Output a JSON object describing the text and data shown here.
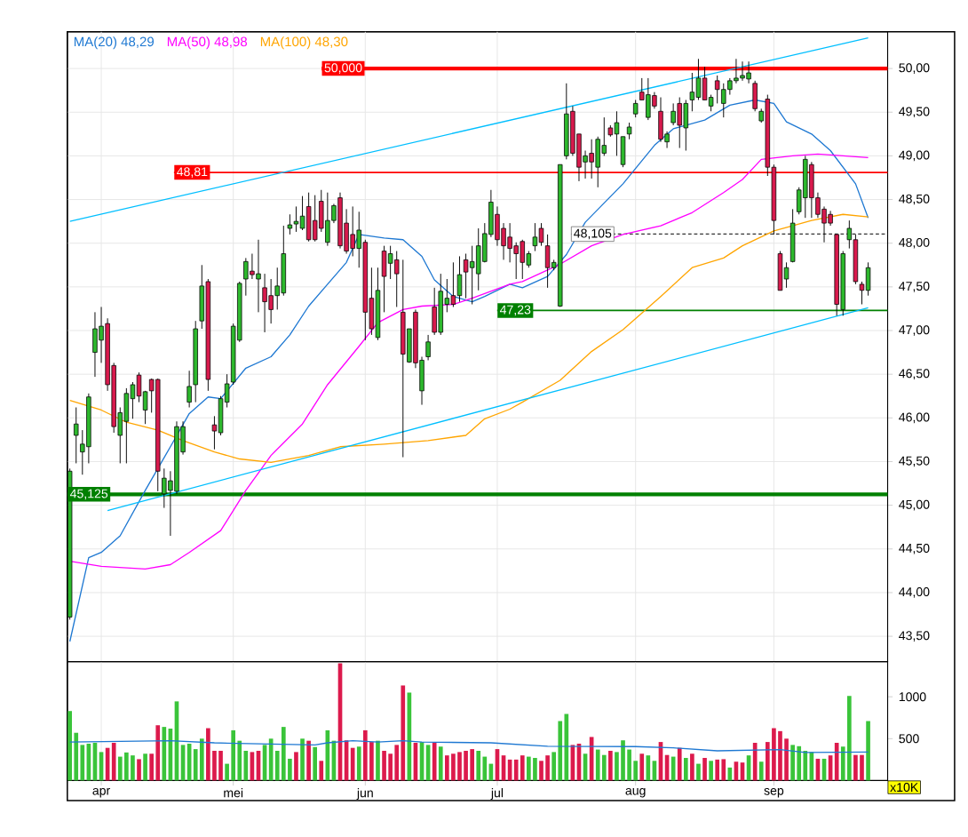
{
  "chart_data": [
    {
      "type": "candlestick",
      "ohlc": [
        [
          43.72,
          45.42,
          43.69,
          45.39
        ],
        [
          45.8,
          46.12,
          45.48,
          45.93
        ],
        [
          45.61,
          45.86,
          45.35,
          45.7
        ],
        [
          45.67,
          46.28,
          45.48,
          46.24
        ],
        [
          46.75,
          47.21,
          46.47,
          47.02
        ],
        [
          46.89,
          47.27,
          46.63,
          47.05
        ],
        [
          47.08,
          47.14,
          46.31,
          46.38
        ],
        [
          46.6,
          46.63,
          45.83,
          45.9
        ],
        [
          45.8,
          46.12,
          45.48,
          46.06
        ],
        [
          45.96,
          46.34,
          45.48,
          46.28
        ],
        [
          46.22,
          46.41,
          45.99,
          46.38
        ],
        [
          46.49,
          46.52,
          46.18,
          46.25
        ],
        [
          46.09,
          46.31,
          45.93,
          46.3
        ],
        [
          46.44,
          46.45,
          46.06,
          46.31
        ],
        [
          46.44,
          46.45,
          45.16,
          45.39
        ],
        [
          45.13,
          45.42,
          44.97,
          45.31
        ],
        [
          45.17,
          45.39,
          44.65,
          45.28
        ],
        [
          45.16,
          45.96,
          45.13,
          45.9
        ],
        [
          45.61,
          45.96,
          45.58,
          45.9
        ],
        [
          46.18,
          46.54,
          46.12,
          46.36
        ],
        [
          46.38,
          47.11,
          46.18,
          47.02
        ],
        [
          47.11,
          47.75,
          47.02,
          47.51
        ],
        [
          47.56,
          47.59,
          46.31,
          46.44
        ],
        [
          45.92,
          46.02,
          45.64,
          45.85
        ],
        [
          45.83,
          46.25,
          45.8,
          46.22
        ],
        [
          46.18,
          46.5,
          46.12,
          46.39
        ],
        [
          46.41,
          47.08,
          46.38,
          47.05
        ],
        [
          46.89,
          47.56,
          46.87,
          47.54
        ],
        [
          47.59,
          47.83,
          47.4,
          47.79
        ],
        [
          47.68,
          47.88,
          47.59,
          47.64
        ],
        [
          47.59,
          48.04,
          47.21,
          47.65
        ],
        [
          47.49,
          47.65,
          46.98,
          47.33
        ],
        [
          47.4,
          47.59,
          47.08,
          47.24
        ],
        [
          47.4,
          47.72,
          47.24,
          47.51
        ],
        [
          47.43,
          48.2,
          47.4,
          47.88
        ],
        [
          48.17,
          48.33,
          48.1,
          48.21
        ],
        [
          48.22,
          48.42,
          48.13,
          48.25
        ],
        [
          48.17,
          48.54,
          48.15,
          48.31
        ],
        [
          48.42,
          48.58,
          48.02,
          48.04
        ],
        [
          48.26,
          48.55,
          48.02,
          48.04
        ],
        [
          48.48,
          48.61,
          48.13,
          48.17
        ],
        [
          48.01,
          48.58,
          47.97,
          48.26
        ],
        [
          48.26,
          48.45,
          48.23,
          48.43
        ],
        [
          48.52,
          48.58,
          47.94,
          47.97
        ],
        [
          48.23,
          48.39,
          47.88,
          47.91
        ],
        [
          48.1,
          48.42,
          47.85,
          47.94
        ],
        [
          47.94,
          48.36,
          47.72,
          48.15
        ],
        [
          48.01,
          48.04,
          46.89,
          47.21
        ],
        [
          47.37,
          47.72,
          46.95,
          47.02
        ],
        [
          46.92,
          47.72,
          46.89,
          47.46
        ],
        [
          47.91,
          47.97,
          47.21,
          47.62
        ],
        [
          47.77,
          47.97,
          47.59,
          47.88
        ],
        [
          47.81,
          47.91,
          47.27,
          47.65
        ],
        [
          47.21,
          47.81,
          45.55,
          46.73
        ],
        [
          46.64,
          47.02,
          46.63,
          47.02
        ],
        [
          47.21,
          47.24,
          46.57,
          46.63
        ],
        [
          46.31,
          46.7,
          46.15,
          46.66
        ],
        [
          46.7,
          46.95,
          46.66,
          46.87
        ],
        [
          47.27,
          47.49,
          46.95,
          46.98
        ],
        [
          46.98,
          47.65,
          46.95,
          47.45
        ],
        [
          47.3,
          47.59,
          47.21,
          47.37
        ],
        [
          47.4,
          47.78,
          47.27,
          47.3
        ],
        [
          47.4,
          47.85,
          47.33,
          47.64
        ],
        [
          47.81,
          47.88,
          47.37,
          47.67
        ],
        [
          47.72,
          47.97,
          47.3,
          47.79
        ],
        [
          47.65,
          48.17,
          47.46,
          47.97
        ],
        [
          47.79,
          48.23,
          47.78,
          48.11
        ],
        [
          48.1,
          48.61,
          48.07,
          48.47
        ],
        [
          48.33,
          48.42,
          47.97,
          48.04
        ],
        [
          48.17,
          48.23,
          47.81,
          47.97
        ],
        [
          48.07,
          48.23,
          47.78,
          47.94
        ],
        [
          47.97,
          48.01,
          47.59,
          47.88
        ],
        [
          48.02,
          48.04,
          47.59,
          47.78
        ],
        [
          47.75,
          47.91,
          47.72,
          47.88
        ],
        [
          47.97,
          48.23,
          47.91,
          48.07
        ],
        [
          48.17,
          48.23,
          47.97,
          48.01
        ],
        [
          47.97,
          48.1,
          47.49,
          47.72
        ],
        [
          47.72,
          47.81,
          47.69,
          47.78
        ],
        [
          47.28,
          48.9,
          47.27,
          48.9
        ],
        [
          49.0,
          49.83,
          48.96,
          49.48
        ],
        [
          49.51,
          49.57,
          49.0,
          49.03
        ],
        [
          49.25,
          49.25,
          48.71,
          48.87
        ],
        [
          48.93,
          49.06,
          48.74,
          49.0
        ],
        [
          49.03,
          49.19,
          48.74,
          48.93
        ],
        [
          48.87,
          49.22,
          48.64,
          49.19
        ],
        [
          49.03,
          49.44,
          49.0,
          49.12
        ],
        [
          49.32,
          49.35,
          49.22,
          49.24
        ],
        [
          49.25,
          49.51,
          49.0,
          49.38
        ],
        [
          48.9,
          49.22,
          48.87,
          49.22
        ],
        [
          49.25,
          49.38,
          49.19,
          49.33
        ],
        [
          49.48,
          49.64,
          49.44,
          49.6
        ],
        [
          49.73,
          49.89,
          49.64,
          49.64
        ],
        [
          49.44,
          49.89,
          49.41,
          49.7
        ],
        [
          49.69,
          49.73,
          49.54,
          49.57
        ],
        [
          49.51,
          49.67,
          49.16,
          49.19
        ],
        [
          49.16,
          49.28,
          49.09,
          49.25
        ],
        [
          49.38,
          49.6,
          49.35,
          49.51
        ],
        [
          49.6,
          49.67,
          49.09,
          49.35
        ],
        [
          49.32,
          49.64,
          49.06,
          49.6
        ],
        [
          49.64,
          49.95,
          49.51,
          49.73
        ],
        [
          49.67,
          50.11,
          49.64,
          49.89
        ],
        [
          49.89,
          50.02,
          49.64,
          49.64
        ],
        [
          49.57,
          49.7,
          49.51,
          49.67
        ],
        [
          49.86,
          49.92,
          49.6,
          49.76
        ],
        [
          49.6,
          49.83,
          49.44,
          49.76
        ],
        [
          49.76,
          49.89,
          49.7,
          49.86
        ],
        [
          49.86,
          50.11,
          49.83,
          49.89
        ],
        [
          49.89,
          50.08,
          49.86,
          49.92
        ],
        [
          49.88,
          50.08,
          49.83,
          49.95
        ],
        [
          49.83,
          49.86,
          49.51,
          49.54
        ],
        [
          49.4,
          49.54,
          49.38,
          49.51
        ],
        [
          49.65,
          49.7,
          48.77,
          48.87
        ],
        [
          48.87,
          48.9,
          48.1,
          48.26
        ],
        [
          47.88,
          47.91,
          47.46,
          47.46
        ],
        [
          47.59,
          47.78,
          47.49,
          47.72
        ],
        [
          47.79,
          48.39,
          47.78,
          48.23
        ],
        [
          48.36,
          48.64,
          48.33,
          48.61
        ],
        [
          48.52,
          49.0,
          48.29,
          48.96
        ],
        [
          48.9,
          48.93,
          48.29,
          48.52
        ],
        [
          48.52,
          48.58,
          48.29,
          48.33
        ],
        [
          48.39,
          48.42,
          48.01,
          48.23
        ],
        [
          48.33,
          48.37,
          48.2,
          48.23
        ],
        [
          48.1,
          48.1,
          47.17,
          47.3
        ],
        [
          47.24,
          47.91,
          47.17,
          47.88
        ],
        [
          48.04,
          48.26,
          47.94,
          48.17
        ],
        [
          48.04,
          48.1,
          47.53,
          47.56
        ],
        [
          47.53,
          47.56,
          47.3,
          47.46
        ],
        [
          47.46,
          47.78,
          47.4,
          47.72
        ]
      ],
      "series": [
        {
          "type": "line",
          "name": "MA(20)  48,29",
          "color": "#1e78d2",
          "values": [
            43.44,
            null,
            null,
            44.4,
            null,
            44.46,
            null,
            null,
            44.65,
            null,
            null,
            null,
            45.17,
            null,
            null,
            null,
            45.67,
            null,
            null,
            46.05,
            null,
            null,
            46.24,
            null,
            46.22,
            null,
            null,
            null,
            46.57,
            null,
            null,
            null,
            46.7,
            null,
            null,
            46.95,
            null,
            null,
            47.28,
            null,
            null,
            47.53,
            null,
            null,
            47.78,
            null,
            48.1,
            null,
            null,
            null,
            48.06,
            null,
            null,
            48.04,
            null,
            null,
            47.85,
            null,
            47.58,
            null,
            null,
            47.39,
            null,
            null,
            47.33,
            null,
            47.39,
            null,
            null,
            null,
            47.53,
            null,
            47.49,
            null,
            null,
            null,
            47.62,
            null,
            null,
            47.87,
            null,
            null,
            48.24,
            null,
            null,
            null,
            null,
            null,
            48.68,
            null,
            null,
            null,
            null,
            49.12,
            null,
            null,
            49.31,
            null,
            null,
            null,
            null,
            49.41,
            null,
            null,
            null,
            49.58,
            null,
            null,
            null,
            49.64,
            null,
            null,
            49.6,
            null,
            49.39,
            null,
            null,
            null,
            49.25,
            null,
            null,
            49.06,
            null,
            null,
            null,
            48.68,
            null,
            48.29
          ]
        },
        {
          "type": "line",
          "name": "MA(50)  48,98",
          "color": "#ff00ff",
          "values": [
            44.36,
            null,
            null,
            null,
            null,
            44.3,
            null,
            null,
            null,
            null,
            null,
            null,
            44.27,
            null,
            null,
            null,
            44.32,
            null,
            null,
            44.46,
            null,
            null,
            null,
            null,
            44.71,
            null,
            null,
            null,
            45.17,
            null,
            null,
            null,
            45.57,
            null,
            null,
            null,
            null,
            45.93,
            null,
            null,
            null,
            46.38,
            null,
            null,
            null,
            null,
            46.82,
            null,
            null,
            47.09,
            null,
            null,
            null,
            47.24,
            null,
            null,
            47.28,
            null,
            null,
            null,
            null,
            47.3,
            null,
            null,
            47.37,
            null,
            null,
            null,
            null,
            null,
            47.53,
            null,
            47.56,
            null,
            null,
            null,
            null,
            null,
            47.76,
            null,
            null,
            null,
            null,
            47.97,
            null,
            null,
            null,
            null,
            48.1,
            null,
            null,
            null,
            null,
            null,
            48.2,
            null,
            null,
            null,
            null,
            48.35,
            null,
            null,
            null,
            null,
            48.58,
            null,
            null,
            48.73,
            null,
            null,
            48.96,
            null,
            null,
            null,
            null,
            49.0,
            null,
            null,
            null,
            49.02,
            null,
            null,
            null,
            null,
            null,
            null,
            null,
            48.98
          ]
        },
        {
          "type": "line",
          "name": "MA(100)  48,30",
          "color": "#ffa500",
          "values": [
            46.2,
            null,
            null,
            null,
            null,
            46.09,
            null,
            null,
            null,
            45.95,
            null,
            null,
            null,
            null,
            45.86,
            null,
            null,
            null,
            45.74,
            null,
            null,
            null,
            null,
            45.61,
            null,
            null,
            null,
            45.53,
            null,
            null,
            null,
            null,
            45.49,
            null,
            null,
            null,
            null,
            null,
            45.57,
            null,
            null,
            null,
            null,
            45.67,
            null,
            null,
            null,
            null,
            null,
            null,
            45.7,
            null,
            null,
            null,
            null,
            null,
            null,
            45.74,
            null,
            null,
            null,
            null,
            null,
            45.8,
            null,
            null,
            45.99,
            null,
            null,
            null,
            46.1,
            null,
            46.18,
            null,
            null,
            null,
            null,
            null,
            46.43,
            null,
            null,
            null,
            null,
            46.76,
            null,
            null,
            null,
            null,
            47.01,
            null,
            null,
            null,
            null,
            null,
            47.39,
            null,
            null,
            null,
            null,
            47.72,
            null,
            null,
            null,
            null,
            47.83,
            null,
            null,
            47.97,
            null,
            null,
            null,
            null,
            48.14,
            null,
            null,
            null,
            null,
            null,
            48.26,
            null,
            null,
            null,
            null,
            48.33,
            null,
            null,
            null,
            48.3
          ]
        },
        {
          "type": "line",
          "color": "#00bfff",
          "values": [
            48.25,
            null,
            null,
            null,
            null,
            null,
            null,
            null,
            null,
            null,
            null,
            null,
            null,
            null,
            null,
            null,
            null,
            null,
            null,
            null,
            null,
            null,
            null,
            null,
            null,
            null,
            null,
            null,
            null,
            null,
            null,
            null,
            null,
            null,
            null,
            null,
            null,
            null,
            null,
            null,
            null,
            null,
            null,
            null,
            null,
            null,
            null,
            null,
            null,
            null,
            null,
            null,
            null,
            null,
            null,
            null,
            null,
            null,
            null,
            null,
            null,
            null,
            null,
            null,
            null,
            null,
            null,
            null,
            null,
            null,
            null,
            null,
            null,
            null,
            null,
            null,
            null,
            null,
            null,
            null,
            null,
            null,
            null,
            null,
            null,
            null,
            null,
            null,
            null,
            null,
            null,
            null,
            null,
            null,
            null,
            null,
            null,
            null,
            null,
            null,
            null,
            null,
            null,
            null,
            null,
            null,
            null,
            null,
            null,
            null,
            null,
            null,
            null,
            null,
            null,
            null,
            null,
            null,
            null,
            null,
            null,
            null,
            null,
            null,
            null,
            null,
            null,
            50.35
          ]
        },
        {
          "type": "line",
          "color": "#00bfff",
          "values": [
            null,
            null,
            null,
            null,
            null,
            null,
            44.94,
            null,
            null,
            null,
            null,
            null,
            null,
            null,
            null,
            null,
            null,
            null,
            null,
            null,
            null,
            null,
            null,
            null,
            null,
            null,
            null,
            null,
            null,
            null,
            null,
            null,
            null,
            null,
            null,
            null,
            null,
            null,
            null,
            null,
            null,
            null,
            null,
            null,
            null,
            null,
            null,
            null,
            null,
            null,
            null,
            null,
            null,
            null,
            null,
            null,
            null,
            null,
            null,
            null,
            null,
            null,
            null,
            null,
            null,
            null,
            null,
            null,
            null,
            null,
            null,
            null,
            null,
            null,
            null,
            null,
            null,
            null,
            null,
            null,
            null,
            null,
            null,
            null,
            null,
            null,
            null,
            null,
            null,
            null,
            null,
            null,
            null,
            null,
            null,
            null,
            null,
            null,
            null,
            null,
            null,
            null,
            null,
            null,
            null,
            null,
            null,
            null,
            null,
            null,
            null,
            null,
            null,
            null,
            null,
            null,
            null,
            null,
            null,
            null,
            null,
            null,
            null,
            null,
            null,
            null,
            null,
            47.26
          ]
        }
      ],
      "ref_lines": [
        {
          "axis": "y",
          "value": 50.0,
          "label": "50,000",
          "color": "#ff0000"
        },
        {
          "axis": "y",
          "value": 48.81,
          "label": "48,81",
          "color": "#ff0000"
        },
        {
          "axis": "y",
          "value": 48.105,
          "label": "48,105",
          "color": "#333333",
          "line_style": "dashed"
        },
        {
          "axis": "y",
          "value": 47.23,
          "label": "47,23",
          "color": "#008000"
        },
        {
          "axis": "y",
          "value": 45.125,
          "label": "45,125",
          "color": "#008000"
        }
      ],
      "ylim": [
        43.21,
        50.42
      ],
      "categories": [
        null,
        null,
        null,
        null,
        null,
        null,
        null,
        null,
        null,
        null,
        null,
        null,
        null,
        null,
        null,
        null,
        null,
        null,
        null,
        null,
        null,
        null,
        null,
        null,
        null,
        null,
        null,
        null,
        null,
        null,
        null,
        null,
        null,
        null,
        null,
        null,
        null,
        null,
        null,
        null,
        null,
        null,
        null,
        null,
        null,
        null,
        null,
        null,
        null,
        null,
        null,
        null,
        null,
        null,
        null,
        null,
        null,
        null,
        null,
        null,
        null,
        null,
        null,
        null,
        null,
        null,
        null,
        null,
        null,
        null,
        null,
        null,
        null,
        null,
        null,
        null,
        null,
        null,
        null,
        null,
        null,
        null,
        null,
        null,
        null,
        null,
        null,
        null,
        null,
        null,
        null,
        null,
        null,
        null,
        null,
        null,
        null,
        null,
        null,
        null,
        null,
        null,
        null,
        null,
        null,
        null,
        null,
        null,
        null,
        null,
        null,
        null,
        null,
        null,
        null,
        null,
        null,
        null,
        null,
        null,
        null,
        null,
        null,
        null,
        null,
        null,
        null,
        null
      ],
      "yticks": [
        {
          "value": 43.5,
          "label": "43,50"
        },
        {
          "value": 44.0,
          "label": "44,00"
        },
        {
          "value": 44.5,
          "label": "44,50"
        },
        {
          "value": 45.0,
          "label": "45,00"
        },
        {
          "value": 45.5,
          "label": "45,50"
        },
        {
          "value": 46.0,
          "label": "46,00"
        },
        {
          "value": 46.5,
          "label": "46,50"
        },
        {
          "value": 47.0,
          "label": "47,00"
        },
        {
          "value": 47.5,
          "label": "47,50"
        },
        {
          "value": 48.0,
          "label": "48,00"
        },
        {
          "value": 48.5,
          "label": "48,50"
        },
        {
          "value": 49.0,
          "label": "49,00"
        },
        {
          "value": 49.5,
          "label": "49,50"
        },
        {
          "value": 50.0,
          "label": "50,00"
        }
      ],
      "grid": "y",
      "legend": "top left"
    },
    {
      "type": "bar",
      "ylabel": "x10K",
      "series": [
        {
          "values": [
            830,
            570,
            425,
            440,
            450,
            340,
            390,
            450,
            285,
            335,
            300,
            255,
            320,
            320,
            660,
            640,
            620,
            945,
            425,
            440,
            375,
            500,
            625,
            355,
            355,
            200,
            600,
            475,
            355,
            340,
            355,
            425,
            500,
            355,
            640,
            260,
            340,
            500,
            475,
            400,
            235,
            600,
            475,
            1400,
            480,
            390,
            405,
            600,
            460,
            475,
            355,
            320,
            425,
            1135,
            1050,
            450,
            460,
            425,
            450,
            405,
            300,
            320,
            340,
            355,
            375,
            355,
            285,
            200,
            375,
            300,
            250,
            250,
            300,
            285,
            270,
            235,
            300,
            340,
            710,
            795,
            425,
            440,
            320,
            520,
            370,
            305,
            355,
            340,
            480,
            370,
            235,
            320,
            300,
            235,
            460,
            305,
            285,
            390,
            270,
            320,
            200,
            270,
            235,
            250,
            255,
            155,
            225,
            215,
            300,
            450,
            225,
            460,
            625,
            590,
            500,
            425,
            410,
            355,
            340,
            260,
            260,
            300,
            450,
            405,
            1010,
            305,
            305,
            710
          ],
          "colors": [
            "#3ac43a",
            "#3ac43a",
            "#3ac43a",
            "#3ac43a",
            "#3ac43a",
            "#3ac43a",
            "#dc1a4c",
            "#dc1a4c",
            "#3ac43a",
            "#3ac43a",
            "#3ac43a",
            "#dc1a4c",
            "#3ac43a",
            "#dc1a4c",
            "#dc1a4c",
            "#3ac43a",
            "#3ac43a",
            "#3ac43a",
            "#3ac43a",
            "#3ac43a",
            "#3ac43a",
            "#3ac43a",
            "#dc1a4c",
            "#dc1a4c",
            "#dc1a4c",
            "#3ac43a",
            "#3ac43a",
            "#3ac43a",
            "#3ac43a",
            "#dc1a4c",
            "#dc1a4c",
            "#3ac43a",
            "#3ac43a",
            "#3ac43a",
            "#3ac43a",
            "#3ac43a",
            "#dc1a4c",
            "#3ac43a",
            "#dc1a4c",
            "#3ac43a",
            "#dc1a4c",
            "#3ac43a",
            "#3ac43a",
            "#dc1a4c",
            "#dc1a4c",
            "#dc1a4c",
            "#3ac43a",
            "#dc1a4c",
            "#dc1a4c",
            "#3ac43a",
            "#dc1a4c",
            "#dc1a4c",
            "#dc1a4c",
            "#dc1a4c",
            "#3ac43a",
            "#dc1a4c",
            "#3ac43a",
            "#3ac43a",
            "#dc1a4c",
            "#3ac43a",
            "#dc1a4c",
            "#dc1a4c",
            "#dc1a4c",
            "#dc1a4c",
            "#dc1a4c",
            "#3ac43a",
            "#3ac43a",
            "#3ac43a",
            "#dc1a4c",
            "#dc1a4c",
            "#dc1a4c",
            "#dc1a4c",
            "#dc1a4c",
            "#3ac43a",
            "#3ac43a",
            "#dc1a4c",
            "#dc1a4c",
            "#3ac43a",
            "#3ac43a",
            "#3ac43a",
            "#dc1a4c",
            "#dc1a4c",
            "#3ac43a",
            "#dc1a4c",
            "#3ac43a",
            "#3ac43a",
            "#dc1a4c",
            "#3ac43a",
            "#3ac43a",
            "#3ac43a",
            "#3ac43a",
            "#dc1a4c",
            "#3ac43a",
            "#3ac43a",
            "#dc1a4c",
            "#dc1a4c",
            "#3ac43a",
            "#dc1a4c",
            "#3ac43a",
            "#dc1a4c",
            "#3ac43a",
            "#dc1a4c",
            "#3ac43a",
            "#dc1a4c",
            "#dc1a4c",
            "#3ac43a",
            "#dc1a4c",
            "#dc1a4c",
            "#3ac43a",
            "#dc1a4c",
            "#3ac43a",
            "#dc1a4c",
            "#dc1a4c",
            "#dc1a4c",
            "#dc1a4c",
            "#3ac43a",
            "#3ac43a",
            "#3ac43a",
            "#3ac43a",
            "#dc1a4c",
            "#3ac43a",
            "#dc1a4c",
            "#dc1a4c",
            "#3ac43a",
            "#3ac43a",
            "#dc1a4c",
            "#dc1a4c",
            "#3ac43a"
          ]
        },
        {
          "type": "line",
          "color": "#1e78d2",
          "values": [
            460,
            null,
            null,
            null,
            null,
            null,
            null,
            null,
            null,
            null,
            null,
            null,
            null,
            null,
            null,
            null,
            475,
            null,
            null,
            null,
            null,
            null,
            null,
            450,
            null,
            null,
            null,
            null,
            null,
            null,
            null,
            null,
            null,
            null,
            null,
            null,
            null,
            null,
            null,
            425,
            null,
            450,
            null,
            null,
            null,
            475,
            null,
            null,
            null,
            460,
            null,
            null,
            null,
            475,
            null,
            null,
            460,
            null,
            null,
            null,
            null,
            null,
            null,
            null,
            null,
            null,
            null,
            450,
            null,
            null,
            null,
            null,
            null,
            null,
            null,
            null,
            410,
            null,
            null,
            null,
            null,
            null,
            null,
            null,
            null,
            null,
            null,
            null,
            null,
            null,
            405,
            null,
            null,
            null,
            null,
            null,
            390,
            null,
            null,
            null,
            null,
            null,
            null,
            355,
            null,
            null,
            null,
            null,
            null,
            null,
            null,
            null,
            null,
            370,
            null,
            null,
            null,
            335,
            null,
            null,
            null,
            null,
            null,
            null,
            null,
            null,
            null,
            340
          ]
        }
      ],
      "ylim": [
        0,
        1420
      ],
      "categories": [
        null,
        null,
        null,
        null,
        null,
        "apr",
        null,
        null,
        null,
        null,
        null,
        null,
        null,
        null,
        null,
        null,
        null,
        null,
        null,
        null,
        null,
        null,
        null,
        null,
        null,
        null,
        "mei",
        null,
        null,
        null,
        null,
        null,
        null,
        null,
        null,
        null,
        null,
        null,
        null,
        null,
        null,
        null,
        null,
        null,
        null,
        null,
        null,
        "jun",
        null,
        null,
        null,
        null,
        null,
        null,
        null,
        null,
        null,
        null,
        null,
        null,
        null,
        null,
        null,
        null,
        null,
        null,
        null,
        null,
        "jul",
        null,
        null,
        null,
        null,
        null,
        null,
        null,
        null,
        null,
        null,
        null,
        null,
        null,
        null,
        null,
        null,
        null,
        null,
        null,
        null,
        null,
        "aug",
        null,
        null,
        null,
        null,
        null,
        null,
        null,
        null,
        null,
        null,
        null,
        null,
        null,
        null,
        null,
        null,
        null,
        null,
        null,
        null,
        null,
        "sep",
        null,
        null,
        null,
        null,
        null,
        null,
        null,
        null,
        null,
        null,
        null,
        null,
        null,
        null,
        null
      ],
      "yticks": [
        500,
        1000
      ],
      "grid": "x"
    }
  ]
}
